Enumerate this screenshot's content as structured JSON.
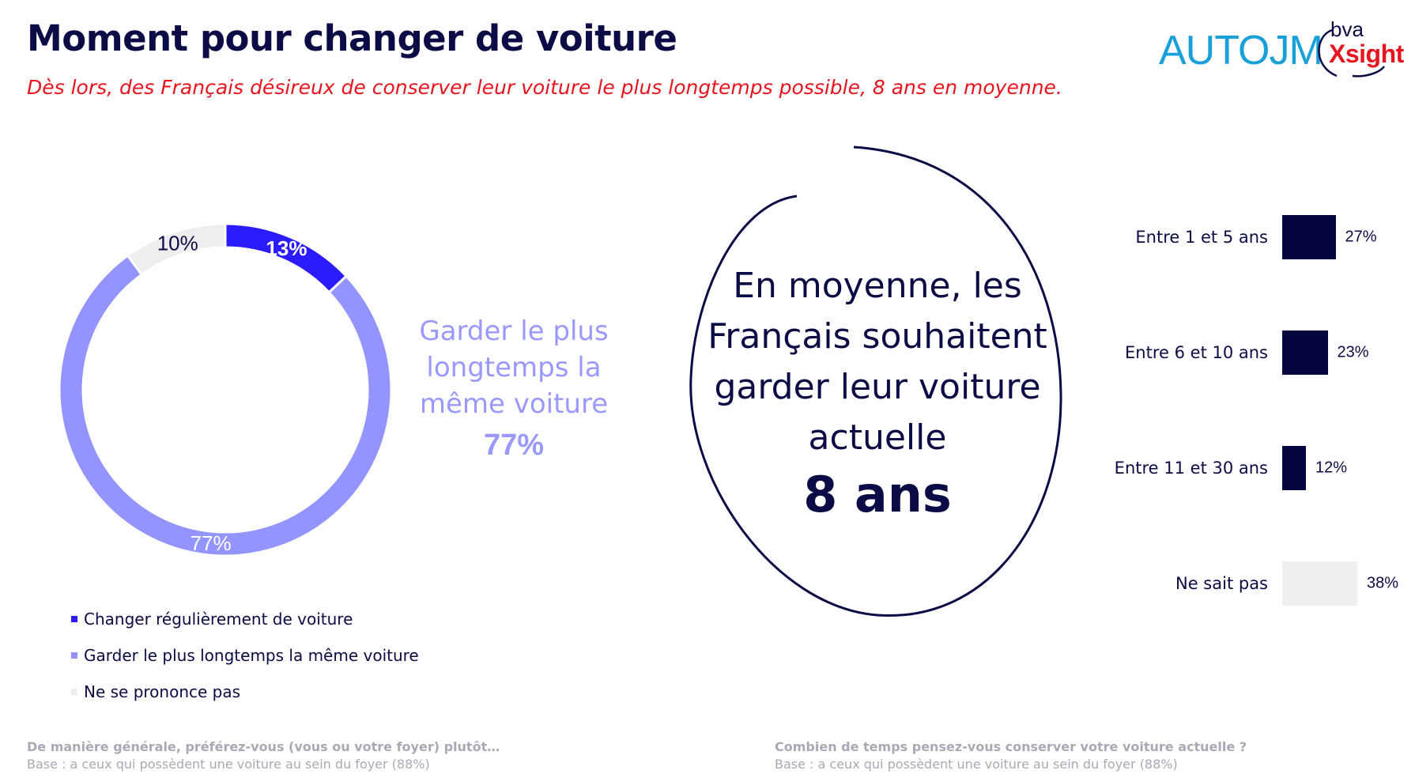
{
  "header": {
    "title": "Moment pour changer de voiture",
    "subtitle": "Dès lors, des Français désireux de conserver leur voiture le plus longtemps possible, 8 ans en moyenne."
  },
  "logos": {
    "autojm": "AUTOJM",
    "bva": "bva",
    "xsight": "Xsight"
  },
  "callout": {
    "text": "Garder le plus longtemps la même voiture",
    "value": "77%"
  },
  "circle": {
    "text": "En moyenne, les Français souhaitent garder leur voiture actuelle",
    "big": "8 ans"
  },
  "chart_data": [
    {
      "type": "pie",
      "series": [
        {
          "name": "Changer régulièrement de voiture",
          "value": 13,
          "label": "13%",
          "color": "#2b1cff"
        },
        {
          "name": "Garder le plus longtemps la même voiture",
          "value": 77,
          "label": "77%",
          "color": "#9494ff"
        },
        {
          "name": "Ne se prononce pas",
          "value": 10,
          "label": "10%",
          "color": "#eeeeee"
        }
      ],
      "legend_position": "bottom-left"
    },
    {
      "type": "bar",
      "orientation": "horizontal",
      "categories": [
        "Entre 1 et 5 ans",
        "Entre 6 et 10 ans",
        "Entre 11 et 30 ans",
        "Ne sait pas"
      ],
      "values": [
        27,
        23,
        12,
        38
      ],
      "value_labels": [
        "27%",
        "23%",
        "12%",
        "38%"
      ],
      "colors": [
        "#05053f",
        "#05053f",
        "#05053f",
        "#efefef"
      ],
      "xlim": [
        0,
        100
      ]
    }
  ],
  "footnotes": {
    "left": {
      "question": "De manière générale, préférez-vous (vous ou votre foyer) plutôt…",
      "base": "Base : a ceux qui possèdent une voiture au sein du foyer (88%)"
    },
    "right": {
      "question": "Combien de temps pensez-vous conserver votre voiture actuelle ?",
      "base": "Base : a ceux qui possèdent une voiture au  sein du foyer (88%)"
    }
  }
}
